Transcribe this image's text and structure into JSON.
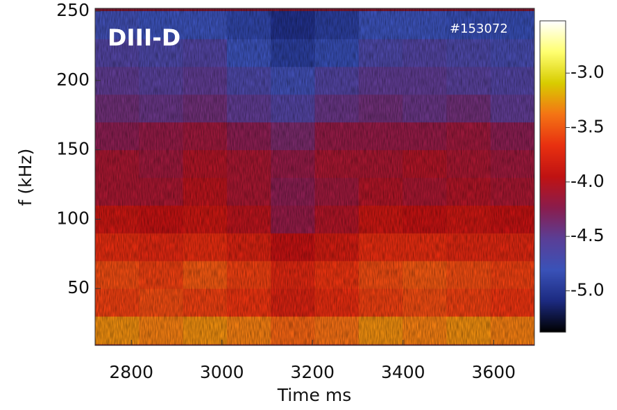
{
  "chart_data": {
    "type": "heatmap",
    "annotations": [
      "DIII-D",
      "#153072"
    ],
    "xlabel": "Time  ms",
    "ylabel": "f (kHz)",
    "xlim": [
      2720,
      3690
    ],
    "ylim": [
      9,
      252
    ],
    "xticks": [
      2800,
      3000,
      3200,
      3400,
      3600
    ],
    "yticks": [
      50,
      100,
      150,
      200,
      250
    ],
    "x": [
      2768.5,
      2865.5,
      2962.5,
      3059.5,
      3156.5,
      3253.5,
      3350.5,
      3447.5,
      3544.5,
      3641.5
    ],
    "y": [
      20,
      40,
      60,
      80,
      100,
      120,
      140,
      160,
      180,
      200,
      220,
      240
    ],
    "z": [
      [
        -3.3,
        -3.35,
        -3.3,
        -3.35,
        -3.45,
        -3.4,
        -3.3,
        -3.35,
        -3.3,
        -3.35
      ],
      [
        -3.6,
        -3.55,
        -3.6,
        -3.65,
        -3.8,
        -3.7,
        -3.6,
        -3.55,
        -3.6,
        -3.65
      ],
      [
        -3.55,
        -3.6,
        -3.5,
        -3.6,
        -3.75,
        -3.65,
        -3.55,
        -3.5,
        -3.55,
        -3.6
      ],
      [
        -3.7,
        -3.75,
        -3.7,
        -3.8,
        -3.95,
        -3.85,
        -3.7,
        -3.7,
        -3.75,
        -3.75
      ],
      [
        -3.9,
        -3.95,
        -3.9,
        -4.0,
        -4.2,
        -4.05,
        -3.9,
        -3.95,
        -3.9,
        -3.95
      ],
      [
        -4.1,
        -4.1,
        -4.0,
        -4.1,
        -4.25,
        -4.15,
        -4.05,
        -4.1,
        -4.05,
        -4.1
      ],
      [
        -4.1,
        -4.15,
        -4.05,
        -4.1,
        -4.2,
        -4.1,
        -4.1,
        -4.05,
        -4.1,
        -4.15
      ],
      [
        -4.25,
        -4.2,
        -4.15,
        -4.25,
        -4.35,
        -4.2,
        -4.2,
        -4.2,
        -4.15,
        -4.25
      ],
      [
        -4.4,
        -4.45,
        -4.4,
        -4.5,
        -4.6,
        -4.45,
        -4.4,
        -4.45,
        -4.4,
        -4.5
      ],
      [
        -4.5,
        -4.55,
        -4.5,
        -4.65,
        -4.75,
        -4.6,
        -4.5,
        -4.5,
        -4.55,
        -4.6
      ],
      [
        -4.6,
        -4.65,
        -4.6,
        -4.8,
        -4.95,
        -4.85,
        -4.65,
        -4.6,
        -4.65,
        -4.7
      ],
      [
        -4.75,
        -4.8,
        -4.8,
        -4.9,
        -5.05,
        -4.95,
        -4.8,
        -4.8,
        -4.85,
        -4.85
      ]
    ],
    "zlim": [
      -5.38,
      -2.52
    ],
    "zticks": [
      {
        "value": -3.0,
        "label": "-3.0"
      },
      {
        "value": -3.5,
        "label": "-3.5"
      },
      {
        "value": -4.0,
        "label": "-4.0"
      },
      {
        "value": -4.5,
        "label": "-4.5"
      },
      {
        "value": -5.0,
        "label": "-5.0"
      }
    ],
    "colormap": [
      "#000000",
      "#1c2a80",
      "#3a52b8",
      "#5a3e96",
      "#8a1c4c",
      "#c01212",
      "#e83010",
      "#f47414",
      "#d8cc00",
      "#ffff70",
      "#ffffff"
    ]
  }
}
